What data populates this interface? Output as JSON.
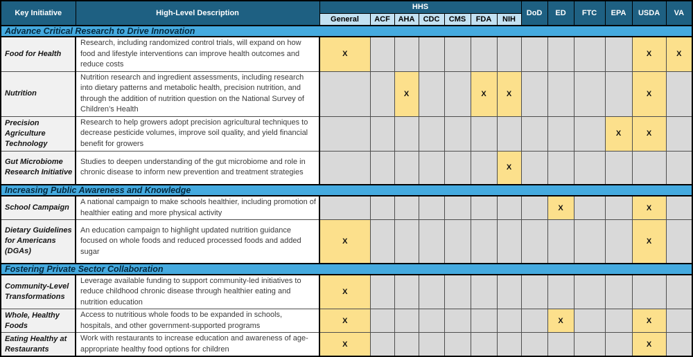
{
  "colors": {
    "header_bg": "#1E6082",
    "subheader_bg": "#C3E1F2",
    "section_bg": "#45AADF",
    "mark_bg": "#FCE08C",
    "empty_bg": "#D9D9D9",
    "initiative_bg": "#F1F1F1"
  },
  "header": {
    "key_initiative": "Key Initiative",
    "description": "High-Level Description",
    "hhs_group": "HHS",
    "hhs_columns": [
      "General",
      "ACF",
      "AHA",
      "CDC",
      "CMS",
      "FDA",
      "NIH"
    ],
    "agency_columns": [
      "DoD",
      "ED",
      "FTC",
      "EPA",
      "USDA",
      "VA"
    ]
  },
  "columns_order": [
    "General",
    "ACF",
    "AHA",
    "CDC",
    "CMS",
    "FDA",
    "NIH",
    "DoD",
    "ED",
    "FTC",
    "EPA",
    "USDA",
    "VA"
  ],
  "mark": "X",
  "sections": [
    {
      "title": "Advance Critical Research to Drive Innovation",
      "rows": [
        {
          "initiative": "Food for Health",
          "description": "Research, including randomized control trials, will expand on how food and lifestyle interventions can improve health outcomes and reduce costs",
          "marks": [
            "General",
            "USDA",
            "VA"
          ]
        },
        {
          "initiative": "Nutrition",
          "description": "Nutrition research and ingredient assessments, including research into dietary patterns and metabolic health, precision nutrition, and through the addition of nutrition question on the National Survey of Children’s Health",
          "marks": [
            "AHA",
            "FDA",
            "NIH",
            "USDA"
          ]
        },
        {
          "initiative": "Precision Agriculture Technology",
          "description": "Research to help growers adopt precision agricultural techniques to decrease pesticide volumes, improve soil quality, and yield financial benefit for growers",
          "marks": [
            "EPA",
            "USDA"
          ]
        },
        {
          "initiative": "Gut Microbiome Research Initiative",
          "description": "Studies to deepen understanding of the gut microbiome and role in chronic disease to inform new prevention and treatment strategies",
          "marks": [
            "NIH"
          ]
        }
      ]
    },
    {
      "title": "Increasing Public Awareness and Knowledge",
      "rows": [
        {
          "initiative": "School Campaign",
          "description": "A national campaign to make schools healthier, including promotion of healthier eating and more physical activity",
          "marks": [
            "ED",
            "USDA"
          ]
        },
        {
          "initiative": "Dietary Guidelines for Americans (DGAs)",
          "description": "An education campaign to highlight updated nutrition guidance focused on whole foods and reduced processed foods and added sugar",
          "marks": [
            "General",
            "USDA"
          ]
        }
      ]
    },
    {
      "title": "Fostering Private Sector Collaboration",
      "rows": [
        {
          "initiative": "Community-Level Transformations",
          "description": "Leverage available funding to support community-led initiatives to reduce childhood chronic disease through healthier eating and nutrition education",
          "marks": [
            "General"
          ]
        },
        {
          "initiative": "Whole, Healthy Foods",
          "description": "Access to nutritious whole foods to be expanded in schools, hospitals, and other government-supported programs",
          "marks": [
            "General",
            "ED",
            "USDA"
          ]
        },
        {
          "initiative": "Eating Healthy at Restaurants",
          "description": "Work with restaurants to increase education and awareness of age-appropriate healthy food options for children",
          "marks": [
            "General",
            "USDA"
          ]
        }
      ]
    }
  ]
}
